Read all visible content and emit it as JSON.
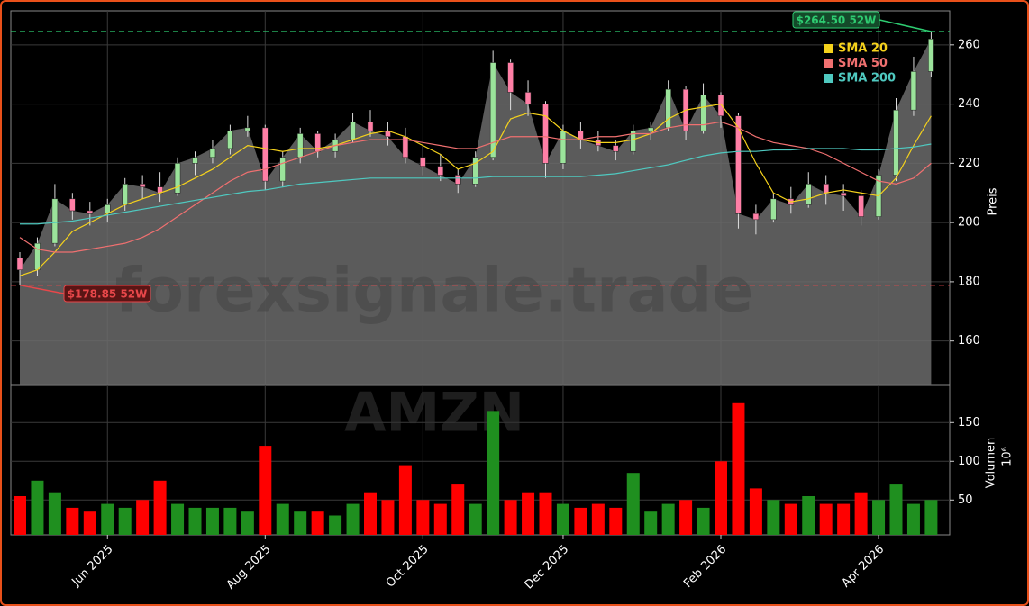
{
  "chart_data": {
    "type": "candlestick",
    "watermark": "forexsignale.trade",
    "symbol": "AMZN",
    "categories": [
      null,
      null,
      null,
      null,
      null,
      "Jun 2025",
      null,
      null,
      null,
      null,
      null,
      null,
      null,
      null,
      "Aug 2025",
      null,
      null,
      null,
      null,
      null,
      null,
      null,
      null,
      "Oct 2025",
      null,
      null,
      null,
      null,
      null,
      null,
      null,
      "Dec 2025",
      null,
      null,
      null,
      null,
      null,
      null,
      null,
      null,
      "Feb 2026",
      null,
      null,
      null,
      null,
      null,
      null,
      null,
      null,
      "Apr 2026",
      null,
      null,
      null
    ],
    "open": [
      188,
      184,
      193,
      208,
      204,
      203,
      206,
      213,
      212,
      210,
      220,
      222,
      225,
      231,
      232,
      214,
      222,
      230,
      224,
      228,
      234,
      231,
      229,
      222,
      219,
      216,
      213,
      222,
      254,
      244,
      240,
      220,
      231,
      228,
      226,
      224,
      231,
      232,
      245,
      231,
      243,
      236,
      203,
      201,
      208,
      206,
      213,
      210,
      209,
      202,
      216,
      238,
      251
    ],
    "high": [
      190,
      195,
      213,
      210,
      207,
      208,
      215,
      216,
      217,
      222,
      224,
      228,
      233,
      236,
      233,
      224,
      232,
      231,
      230,
      237,
      238,
      234,
      232,
      226,
      223,
      218,
      224,
      258,
      255,
      248,
      241,
      233,
      234,
      231,
      228,
      233,
      234,
      248,
      246,
      247,
      244,
      237,
      206,
      210,
      212,
      217,
      216,
      213,
      211,
      218,
      242,
      256,
      264.5
    ],
    "low": [
      179,
      182,
      192,
      201,
      199,
      200,
      204,
      208,
      207,
      209,
      216,
      220,
      223,
      229,
      211,
      212,
      220,
      222,
      222,
      227,
      229,
      226,
      220,
      216,
      214,
      210,
      212,
      221,
      238,
      236,
      215,
      218,
      225,
      224,
      221,
      223,
      228,
      231,
      228,
      230,
      232,
      198,
      196,
      200,
      203,
      205,
      206,
      204,
      199,
      201,
      214,
      236,
      249
    ],
    "close": [
      184,
      193,
      208,
      204,
      203,
      206,
      213,
      212,
      210,
      220,
      222,
      225,
      231,
      232,
      214,
      222,
      230,
      224,
      228,
      234,
      231,
      229,
      222,
      219,
      216,
      213,
      222,
      254,
      244,
      240,
      220,
      231,
      228,
      226,
      224,
      231,
      232,
      245,
      231,
      243,
      236,
      203,
      201,
      208,
      206,
      213,
      210,
      209,
      202,
      216,
      238,
      251,
      262
    ],
    "up_color": "#9be39b",
    "down_color": "#ff7fa6",
    "area_color": "#6b6b6b",
    "series": [
      {
        "name": "SMA 20",
        "color": "#f5d21c",
        "values": [
          182,
          184,
          190,
          197,
          200,
          203,
          206,
          208,
          210,
          212,
          215,
          218,
          222,
          226,
          225,
          224,
          225,
          225,
          226,
          228,
          230,
          231,
          229,
          226,
          223,
          218,
          220,
          224,
          235,
          237,
          236,
          231,
          228,
          227,
          227,
          228,
          230,
          235,
          238,
          239,
          240,
          232,
          220,
          210,
          207,
          208,
          210,
          211,
          210,
          209,
          215,
          226,
          236
        ]
      },
      {
        "name": "SMA 50",
        "color": "#f07070",
        "values": [
          195,
          191,
          190,
          190,
          191,
          192,
          193,
          195,
          198,
          202,
          206,
          210,
          214,
          217,
          218,
          220,
          222,
          224,
          226,
          227,
          228,
          228,
          228,
          227,
          226,
          225,
          225,
          227,
          229,
          229,
          229,
          228,
          228,
          229,
          229,
          230,
          230,
          232,
          233,
          233,
          234,
          232,
          229,
          227,
          226,
          225,
          223,
          220,
          217,
          214,
          213,
          215,
          220
        ]
      },
      {
        "name": "SMA 200",
        "color": "#4fc9c0",
        "values": [
          199.5,
          199.5,
          200,
          200.5,
          201.5,
          202.5,
          203.5,
          204.5,
          205.5,
          206.5,
          207.5,
          208.5,
          209.5,
          210.5,
          211,
          212,
          213,
          213.5,
          214,
          214.5,
          215,
          215,
          215,
          215,
          215,
          215,
          215,
          215.5,
          215.5,
          215.5,
          215.5,
          215.5,
          215.5,
          216,
          216.5,
          217.5,
          218.5,
          219.5,
          221,
          222.5,
          223.5,
          224,
          224,
          224.5,
          224.5,
          225,
          225,
          225,
          224.5,
          224.5,
          225,
          225.5,
          226.5
        ]
      }
    ],
    "ylim": [
      145,
      271.5
    ],
    "yticks": [
      160,
      180,
      200,
      220,
      240,
      260
    ],
    "ylabel": "Preis",
    "grid": true,
    "legend": "upper right",
    "annotations": [
      {
        "label": "$264.50 52W",
        "value": 264.5,
        "color": "#2ecc71"
      },
      {
        "label": "$178.85 52W",
        "value": 178.85,
        "color": "#e8474a"
      }
    ],
    "volume": {
      "values": [
        55,
        75,
        60,
        40,
        35,
        45,
        40,
        50,
        75,
        45,
        40,
        40,
        40,
        35,
        120,
        45,
        35,
        35,
        30,
        45,
        60,
        50,
        95,
        50,
        45,
        70,
        45,
        165,
        50,
        60,
        60,
        45,
        40,
        45,
        40,
        85,
        35,
        45,
        50,
        40,
        100,
        175,
        65,
        50,
        45,
        55,
        45,
        45,
        60,
        50,
        70,
        45,
        50
      ],
      "up_color": "#1f8f1f",
      "down_color": "#ff0000",
      "ylim": [
        5,
        198
      ],
      "yticks": [
        50,
        100,
        150
      ],
      "ylabel": "Volumen",
      "exponent_label": "10⁶"
    }
  }
}
